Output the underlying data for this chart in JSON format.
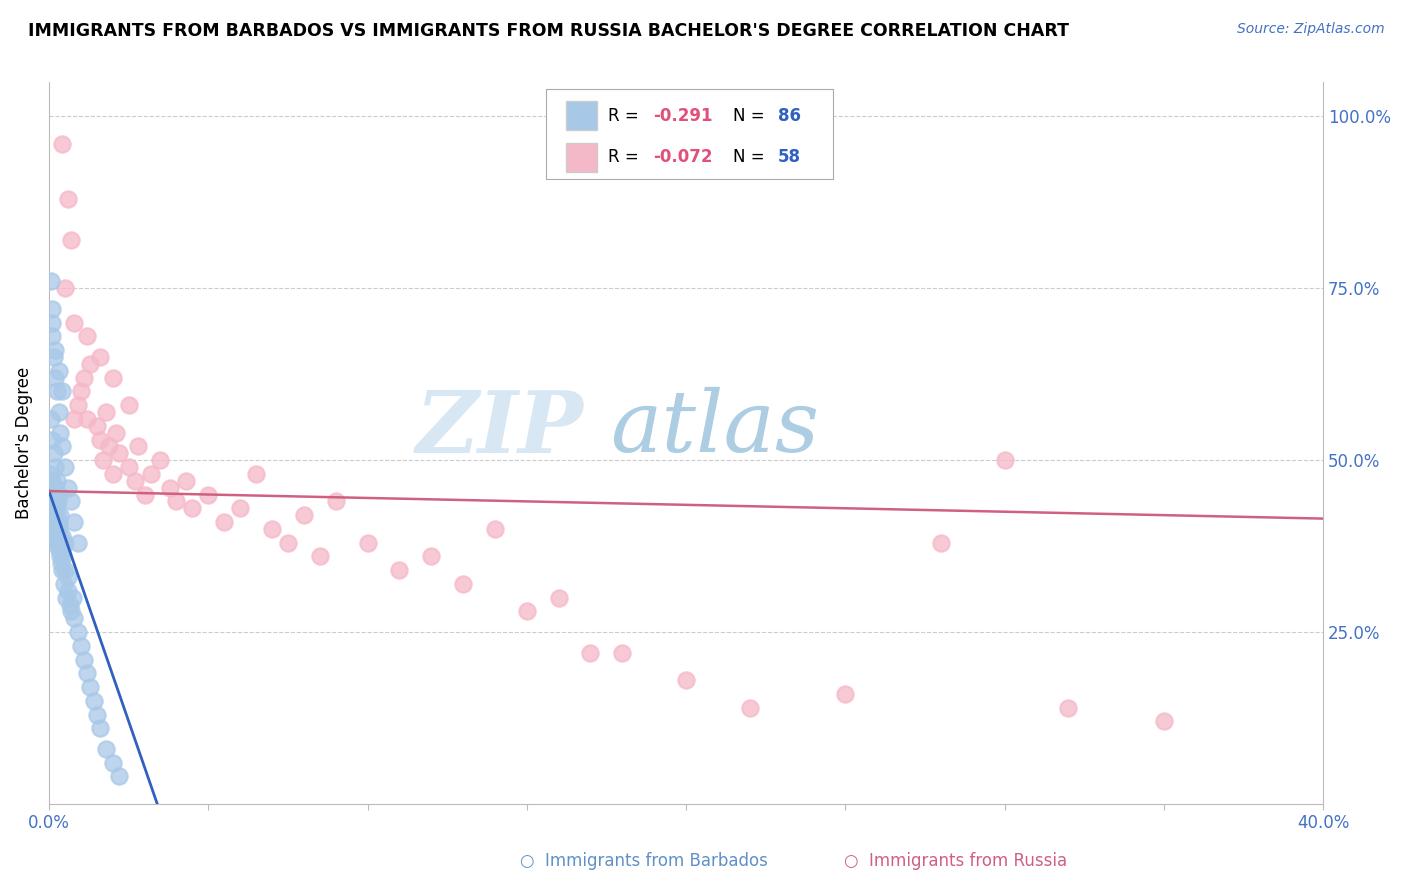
{
  "title": "IMMIGRANTS FROM BARBADOS VS IMMIGRANTS FROM RUSSIA BACHELOR'S DEGREE CORRELATION CHART",
  "source": "Source: ZipAtlas.com",
  "ylabel": "Bachelor's Degree",
  "ytick_labels": [
    "100.0%",
    "75.0%",
    "50.0%",
    "25.0%"
  ],
  "ytick_values": [
    1.0,
    0.75,
    0.5,
    0.25
  ],
  "color_barbados": "#a8c8e8",
  "color_russia": "#f5b8c8",
  "color_barbados_line": "#3060c0",
  "color_russia_line": "#d06080",
  "watermark_zip": "ZIP",
  "watermark_atlas": "atlas",
  "xlim": [
    0.0,
    0.4
  ],
  "ylim": [
    0.0,
    1.05
  ],
  "barbados_line_x": [
    0.0,
    0.034
  ],
  "barbados_line_y": [
    0.455,
    0.0
  ],
  "russia_line_x": [
    0.0,
    0.4
  ],
  "russia_line_y": [
    0.455,
    0.415
  ],
  "barbados_x": [
    0.0003,
    0.0005,
    0.0006,
    0.0007,
    0.0008,
    0.001,
    0.001,
    0.001,
    0.0012,
    0.0013,
    0.0014,
    0.0015,
    0.0015,
    0.0016,
    0.0017,
    0.0018,
    0.0019,
    0.002,
    0.002,
    0.002,
    0.002,
    0.0022,
    0.0023,
    0.0024,
    0.0025,
    0.0026,
    0.0027,
    0.0028,
    0.003,
    0.003,
    0.003,
    0.0032,
    0.0033,
    0.0035,
    0.0035,
    0.0036,
    0.0038,
    0.004,
    0.004,
    0.0042,
    0.0045,
    0.0046,
    0.005,
    0.005,
    0.0055,
    0.006,
    0.006,
    0.0065,
    0.007,
    0.0075,
    0.008,
    0.009,
    0.01,
    0.011,
    0.012,
    0.013,
    0.014,
    0.015,
    0.016,
    0.018,
    0.02,
    0.022,
    0.0005,
    0.001,
    0.001,
    0.0015,
    0.002,
    0.0025,
    0.003,
    0.0035,
    0.004,
    0.005,
    0.006,
    0.007,
    0.008,
    0.009,
    0.001,
    0.002,
    0.003,
    0.004,
    0.0005,
    0.001,
    0.0015,
    0.002,
    0.0025,
    0.003
  ],
  "barbados_y": [
    0.44,
    0.46,
    0.48,
    0.43,
    0.45,
    0.47,
    0.44,
    0.42,
    0.46,
    0.4,
    0.43,
    0.45,
    0.41,
    0.42,
    0.44,
    0.46,
    0.43,
    0.4,
    0.42,
    0.44,
    0.38,
    0.41,
    0.43,
    0.39,
    0.4,
    0.42,
    0.44,
    0.38,
    0.41,
    0.39,
    0.37,
    0.4,
    0.38,
    0.36,
    0.42,
    0.38,
    0.35,
    0.37,
    0.39,
    0.34,
    0.36,
    0.32,
    0.34,
    0.38,
    0.3,
    0.31,
    0.33,
    0.29,
    0.28,
    0.3,
    0.27,
    0.25,
    0.23,
    0.21,
    0.19,
    0.17,
    0.15,
    0.13,
    0.11,
    0.08,
    0.06,
    0.04,
    0.76,
    0.72,
    0.68,
    0.65,
    0.62,
    0.6,
    0.57,
    0.54,
    0.52,
    0.49,
    0.46,
    0.44,
    0.41,
    0.38,
    0.7,
    0.66,
    0.63,
    0.6,
    0.56,
    0.53,
    0.51,
    0.49,
    0.47,
    0.45
  ],
  "russia_x": [
    0.004,
    0.006,
    0.007,
    0.008,
    0.009,
    0.01,
    0.011,
    0.012,
    0.013,
    0.015,
    0.016,
    0.017,
    0.018,
    0.019,
    0.02,
    0.021,
    0.022,
    0.025,
    0.027,
    0.028,
    0.03,
    0.032,
    0.035,
    0.038,
    0.04,
    0.043,
    0.045,
    0.05,
    0.055,
    0.06,
    0.065,
    0.07,
    0.075,
    0.08,
    0.085,
    0.09,
    0.1,
    0.11,
    0.12,
    0.13,
    0.14,
    0.15,
    0.16,
    0.17,
    0.18,
    0.2,
    0.22,
    0.25,
    0.28,
    0.3,
    0.32,
    0.35,
    0.005,
    0.008,
    0.012,
    0.016,
    0.02,
    0.025
  ],
  "russia_y": [
    0.96,
    0.88,
    0.82,
    0.56,
    0.58,
    0.6,
    0.62,
    0.56,
    0.64,
    0.55,
    0.53,
    0.5,
    0.57,
    0.52,
    0.48,
    0.54,
    0.51,
    0.49,
    0.47,
    0.52,
    0.45,
    0.48,
    0.5,
    0.46,
    0.44,
    0.47,
    0.43,
    0.45,
    0.41,
    0.43,
    0.48,
    0.4,
    0.38,
    0.42,
    0.36,
    0.44,
    0.38,
    0.34,
    0.36,
    0.32,
    0.4,
    0.28,
    0.3,
    0.22,
    0.22,
    0.18,
    0.14,
    0.16,
    0.38,
    0.5,
    0.14,
    0.12,
    0.75,
    0.7,
    0.68,
    0.65,
    0.62,
    0.58
  ]
}
